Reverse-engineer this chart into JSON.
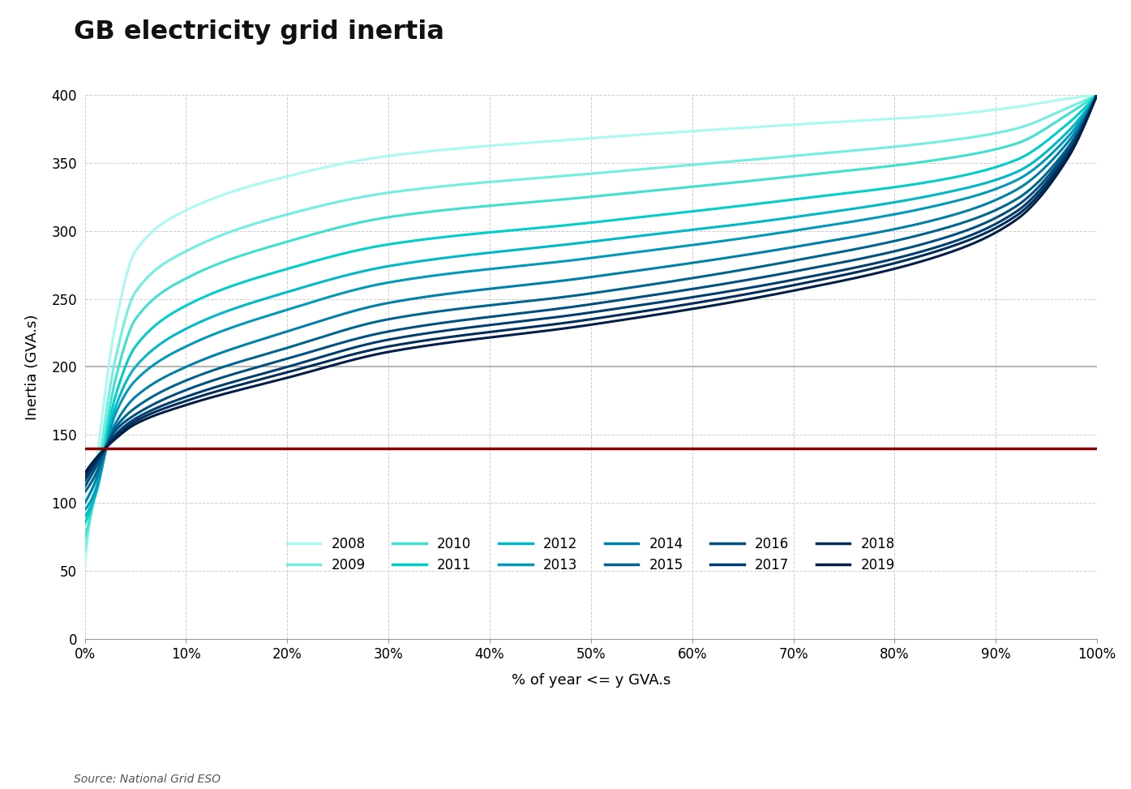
{
  "title": "GB electricity grid inertia",
  "xlabel": "% of year <= y GVA.s",
  "ylabel": "Inertia (GVA.s)",
  "source": "Source: National Grid ESO",
  "ylim": [
    0,
    400
  ],
  "xlim": [
    0,
    1
  ],
  "red_line_y": 140,
  "gray_line_y": 200,
  "years": [
    2008,
    2009,
    2010,
    2011,
    2012,
    2013,
    2014,
    2015,
    2016,
    2017,
    2018,
    2019
  ],
  "colors": [
    "#AAFAF0",
    "#70EFE0",
    "#3FE0D0",
    "#00CEC8",
    "#00B8C8",
    "#009AB8",
    "#0080A8",
    "#006490",
    "#005080",
    "#003E70",
    "#002E5C",
    "#001E48"
  ],
  "line_width": 2.2,
  "background_color": "#ffffff",
  "grid_color": "#cccccc",
  "curve_control_points": {
    "x_knots": [
      0.0,
      0.01,
      0.03,
      0.05,
      0.1,
      0.2,
      0.3,
      0.5,
      0.7,
      0.85,
      0.92,
      0.97,
      1.0
    ],
    "y_by_year": {
      "2008": [
        55,
        120,
        230,
        285,
        315,
        340,
        355,
        368,
        378,
        385,
        391,
        397,
        400
      ],
      "2009": [
        65,
        110,
        205,
        255,
        285,
        312,
        328,
        342,
        355,
        366,
        375,
        390,
        400
      ],
      "2010": [
        75,
        105,
        190,
        235,
        265,
        292,
        310,
        325,
        340,
        353,
        364,
        385,
        400
      ],
      "2011": [
        85,
        105,
        178,
        215,
        245,
        272,
        290,
        306,
        323,
        338,
        352,
        378,
        400
      ],
      "2012": [
        90,
        105,
        170,
        200,
        228,
        255,
        274,
        292,
        310,
        328,
        343,
        372,
        400
      ],
      "2013": [
        95,
        108,
        165,
        190,
        215,
        242,
        262,
        280,
        300,
        320,
        337,
        368,
        400
      ],
      "2014": [
        100,
        115,
        158,
        178,
        200,
        226,
        247,
        266,
        288,
        310,
        330,
        364,
        400
      ],
      "2015": [
        108,
        120,
        155,
        170,
        190,
        214,
        235,
        254,
        278,
        302,
        323,
        360,
        400
      ],
      "2016": [
        112,
        125,
        153,
        165,
        183,
        206,
        226,
        246,
        270,
        295,
        318,
        358,
        400
      ],
      "2017": [
        116,
        128,
        150,
        162,
        178,
        200,
        220,
        240,
        264,
        290,
        314,
        356,
        400
      ],
      "2018": [
        119,
        130,
        148,
        160,
        175,
        196,
        215,
        235,
        260,
        287,
        311,
        354,
        400
      ],
      "2019": [
        122,
        132,
        147,
        158,
        172,
        192,
        211,
        231,
        256,
        283,
        308,
        352,
        400
      ]
    }
  }
}
